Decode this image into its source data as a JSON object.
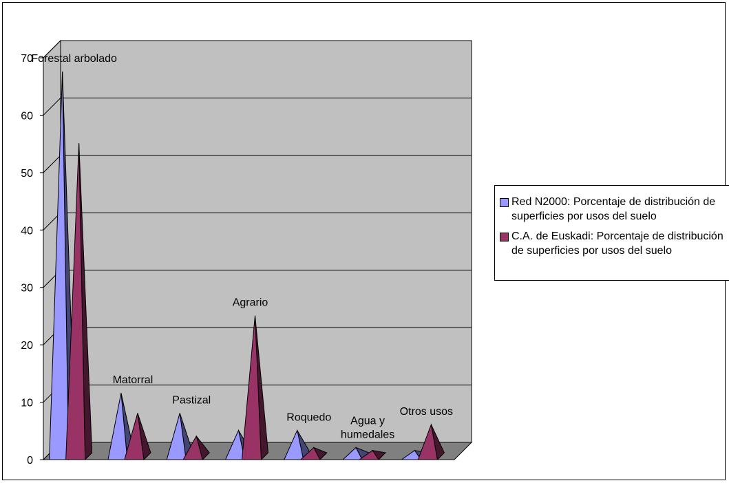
{
  "chart_data": {
    "type": "bar",
    "shape": "pyramid-3d",
    "title": "",
    "xlabel": "",
    "ylabel": "",
    "ylim": [
      0,
      70
    ],
    "yticks": [
      "0",
      "10",
      "20",
      "30",
      "40",
      "50",
      "60",
      "70"
    ],
    "grid": true,
    "legend_position": "right",
    "categories": [
      "Forestal arbolado",
      "Matorral",
      "Pastizal",
      "Agrario",
      "Roquedo",
      "Agua y humedales",
      "Otros usos"
    ],
    "category_labels": [
      [
        "Forestal arbolado"
      ],
      [
        "Matorral"
      ],
      [
        "Pastizal"
      ],
      [
        "Agrario"
      ],
      [
        "Roquedo"
      ],
      [
        "Agua y",
        "humedales"
      ],
      [
        "Otros usos"
      ]
    ],
    "series": [
      {
        "name": "Red N2000: Porcentaje de distribución de superficies por usos del suelo",
        "name_lines": [
          "Red N2000: Porcentaje de",
          "distribución de superficies por usos",
          "del suelo"
        ],
        "color": "#9999ff",
        "values": [
          67,
          11,
          7.5,
          4.5,
          4.5,
          1.5,
          1
        ]
      },
      {
        "name": "C.A. de Euskadi: Porcentaje de distribución de superficies por usos del suelo",
        "name_lines": [
          "C.A. de Euskadi: Porcentaje de",
          "distribución de superficies por usos",
          "del suelo"
        ],
        "color": "#993366",
        "values": [
          54.5,
          7.5,
          3.5,
          24.5,
          1.5,
          1,
          5.5
        ]
      }
    ],
    "wall_color": "#c0c0c0",
    "floor_color": "#808080"
  }
}
